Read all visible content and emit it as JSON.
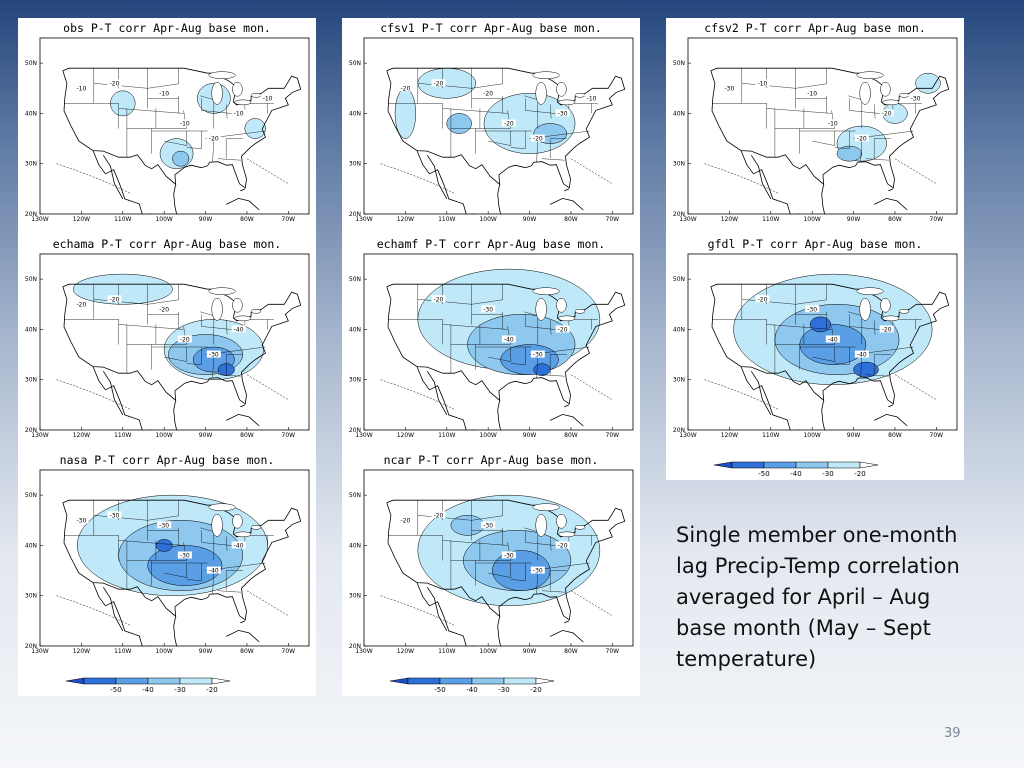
{
  "panels": [
    {
      "title": "obs P-T corr Apr-Aug base mon.",
      "contour_labels": [
        "-20",
        "-10",
        "-10",
        "-20",
        "-10",
        "-10",
        "-10"
      ]
    },
    {
      "title": "cfsv1 P-T corr Apr-Aug base mon.",
      "contour_labels": [
        "-20",
        "-20",
        "-20",
        "-20",
        "-30",
        "-20",
        "-10"
      ]
    },
    {
      "title": "cfsv2 P-T corr Apr-Aug base mon.",
      "contour_labels": [
        "-10",
        "-10",
        "-10",
        "-20",
        "-20",
        "-30",
        "-30"
      ]
    },
    {
      "title": "echama P-T corr Apr-Aug base mon.",
      "contour_labels": [
        "-20",
        "-20",
        "-20",
        "-30",
        "-40",
        "-20"
      ]
    },
    {
      "title": "echamf P-T corr Apr-Aug base mon.",
      "contour_labels": [
        "-20",
        "-30",
        "-40",
        "-30",
        "-20"
      ]
    },
    {
      "title": "gfdl P-T corr Apr-Aug base mon.",
      "contour_labels": [
        "-20",
        "-30",
        "-40",
        "-40",
        "-20"
      ]
    },
    {
      "title": "nasa P-T corr Apr-Aug base mon.",
      "contour_labels": [
        "-30",
        "-30",
        "-30",
        "-40",
        "-40",
        "-30"
      ]
    },
    {
      "title": "ncar P-T corr Apr-Aug base mon.",
      "contour_labels": [
        "-20",
        "-30",
        "-30",
        "-30",
        "-20",
        "-20"
      ]
    }
  ],
  "axes": {
    "lat_labels": [
      "50N",
      "40N",
      "30N",
      "20N"
    ],
    "lon_labels": [
      "130W",
      "120W",
      "110W",
      "100W",
      "90W",
      "80W",
      "70W"
    ]
  },
  "legend": {
    "labels": [
      "-50",
      "-40",
      "-30",
      "-20"
    ]
  },
  "colors": {
    "shade_20": "#bfe8f8",
    "shade_30": "#8fc8ef",
    "shade_40": "#5a9fe6",
    "shade_50": "#2e6fd8"
  },
  "caption": "Single member one-month lag Precip-Temp correlation averaged for April – Aug base month (May – Sept temperature)",
  "slide_number": "39"
}
